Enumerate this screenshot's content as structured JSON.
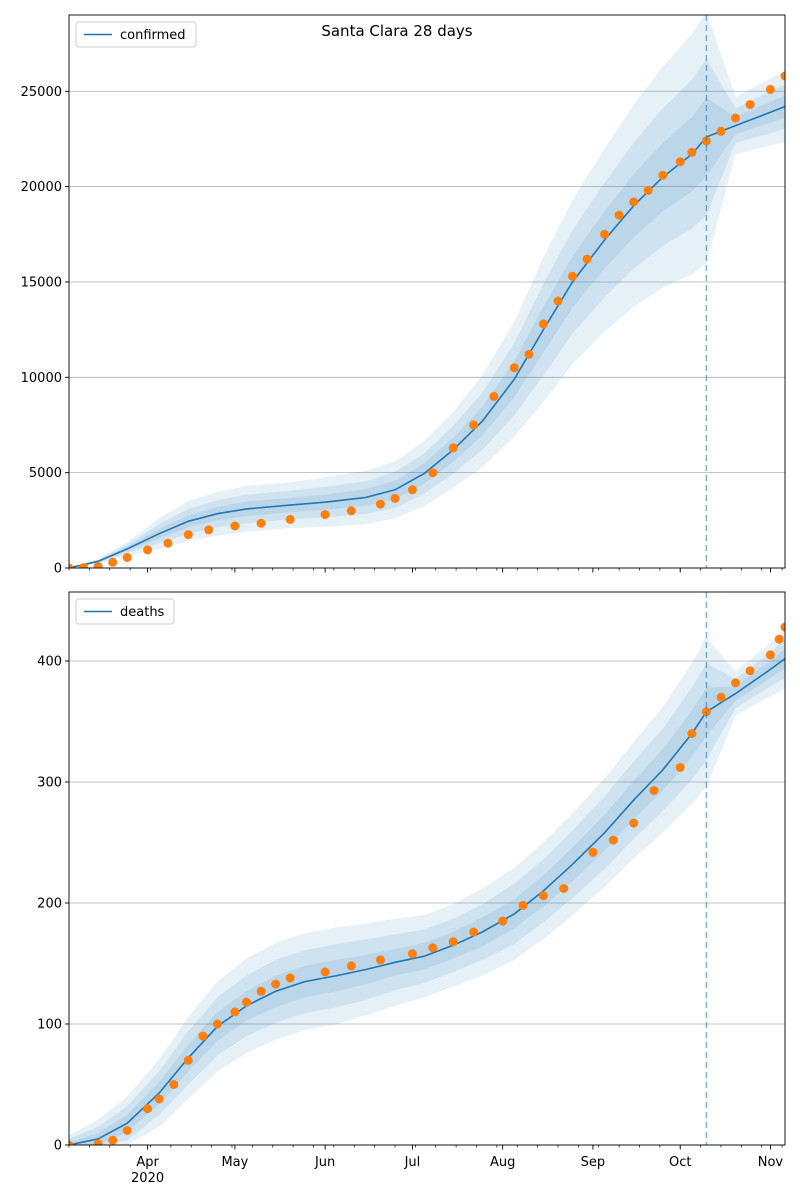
{
  "title": "Santa Clara 28 days",
  "colors": {
    "model": "#1f77b4",
    "observed": "#ff7f0e",
    "band": "#1f77b4",
    "cutoff": "#1f77b4",
    "grid": "#b0b0b0"
  },
  "x_axis": {
    "start_date": "2020-03-05",
    "end_date": "2020-11-06",
    "month_ticks": [
      {
        "label": "Apr",
        "date": "2020-04-01",
        "sublabel": "2020"
      },
      {
        "label": "May",
        "date": "2020-05-01"
      },
      {
        "label": "Jun",
        "date": "2020-06-01"
      },
      {
        "label": "Jul",
        "date": "2020-07-01"
      },
      {
        "label": "Aug",
        "date": "2020-08-01"
      },
      {
        "label": "Sep",
        "date": "2020-09-01"
      },
      {
        "label": "Oct",
        "date": "2020-10-01"
      },
      {
        "label": "Nov",
        "date": "2020-11-01"
      }
    ]
  },
  "chart_data": [
    {
      "type": "line",
      "legend": "confirmed",
      "legend_position": "upper-left",
      "grid": "horizontal",
      "ylim": [
        0,
        29000
      ],
      "yticks": [
        0,
        5000,
        10000,
        15000,
        20000,
        25000
      ],
      "forecast_start": "2020-10-10",
      "model": {
        "dates": [
          "2020-03-05",
          "2020-03-15",
          "2020-03-25",
          "2020-04-05",
          "2020-04-15",
          "2020-04-25",
          "2020-05-05",
          "2020-05-20",
          "2020-06-01",
          "2020-06-15",
          "2020-06-25",
          "2020-07-05",
          "2020-07-15",
          "2020-07-25",
          "2020-08-05",
          "2020-08-15",
          "2020-08-25",
          "2020-09-05",
          "2020-09-15",
          "2020-09-25",
          "2020-10-05",
          "2020-10-10",
          "2020-10-20",
          "2020-11-01",
          "2020-11-06"
        ],
        "values": [
          0,
          350,
          1000,
          1800,
          2450,
          2850,
          3100,
          3300,
          3450,
          3700,
          4100,
          4950,
          6200,
          7700,
          9900,
          12500,
          15000,
          17200,
          19000,
          20500,
          21700,
          22600,
          23200,
          23900,
          24200
        ],
        "band_offsets": [
          [
            0,
            120,
            380,
            800,
            1050,
            1150,
            1200,
            1200,
            1300,
            1400,
            1500,
            1700,
            2000,
            2400,
            3000,
            3800,
            4300,
            4800,
            5300,
            5800,
            6300,
            6600,
            1500,
            1750,
            1850
          ],
          [
            0,
            70,
            230,
            500,
            650,
            700,
            750,
            750,
            800,
            850,
            950,
            1050,
            1250,
            1500,
            1900,
            2400,
            2700,
            3000,
            3300,
            3600,
            3900,
            4100,
            900,
            1100,
            1150
          ],
          [
            0,
            35,
            110,
            250,
            320,
            350,
            380,
            380,
            400,
            430,
            480,
            530,
            630,
            750,
            950,
            1200,
            1350,
            1500,
            1650,
            1800,
            1950,
            2050,
            450,
            550,
            580
          ]
        ]
      },
      "observed": {
        "dates": [
          "2020-03-05",
          "2020-03-10",
          "2020-03-15",
          "2020-03-20",
          "2020-03-25",
          "2020-04-01",
          "2020-04-08",
          "2020-04-15",
          "2020-04-22",
          "2020-05-01",
          "2020-05-10",
          "2020-05-20",
          "2020-06-01",
          "2020-06-10",
          "2020-06-20",
          "2020-06-25",
          "2020-07-01",
          "2020-07-08",
          "2020-07-15",
          "2020-07-22",
          "2020-07-29",
          "2020-08-05",
          "2020-08-10",
          "2020-08-15",
          "2020-08-20",
          "2020-08-25",
          "2020-08-30",
          "2020-09-05",
          "2020-09-10",
          "2020-09-15",
          "2020-09-20",
          "2020-09-25",
          "2020-10-01",
          "2020-10-05",
          "2020-10-10",
          "2020-10-15",
          "2020-10-20",
          "2020-10-25",
          "2020-11-01",
          "2020-11-06"
        ],
        "values": [
          0,
          20,
          80,
          300,
          550,
          950,
          1300,
          1750,
          2000,
          2200,
          2350,
          2550,
          2800,
          3000,
          3350,
          3650,
          4100,
          5000,
          6300,
          7500,
          9000,
          10500,
          11200,
          12800,
          14000,
          15300,
          16200,
          17500,
          18500,
          19200,
          19800,
          20600,
          21300,
          21800,
          22400,
          22900,
          23600,
          24300,
          25100,
          25800
        ]
      }
    },
    {
      "type": "line",
      "legend": "deaths",
      "legend_position": "upper-left",
      "grid": "horizontal",
      "ylim": [
        0,
        457
      ],
      "yticks": [
        0,
        100,
        200,
        300,
        400
      ],
      "forecast_start": "2020-10-10",
      "model": {
        "dates": [
          "2020-03-05",
          "2020-03-15",
          "2020-03-25",
          "2020-04-05",
          "2020-04-15",
          "2020-04-25",
          "2020-05-05",
          "2020-05-15",
          "2020-05-25",
          "2020-06-05",
          "2020-06-15",
          "2020-06-25",
          "2020-07-05",
          "2020-07-15",
          "2020-07-25",
          "2020-08-05",
          "2020-08-15",
          "2020-08-25",
          "2020-09-05",
          "2020-09-15",
          "2020-09-25",
          "2020-10-05",
          "2020-10-10",
          "2020-10-20",
          "2020-11-01",
          "2020-11-06"
        ],
        "values": [
          0,
          5,
          18,
          43,
          72,
          98,
          115,
          127,
          135,
          140,
          145,
          151,
          156,
          165,
          176,
          191,
          210,
          232,
          258,
          285,
          310,
          340,
          358,
          373,
          393,
          402
        ],
        "band_offsets": [
          [
            8,
            16,
            22,
            28,
            34,
            37,
            39,
            40,
            40,
            40,
            38,
            36,
            34,
            34,
            36,
            38,
            40,
            42,
            45,
            48,
            52,
            58,
            62,
            18,
            22,
            25
          ],
          [
            5,
            10,
            14,
            18,
            22,
            24,
            25,
            26,
            26,
            26,
            25,
            23,
            22,
            22,
            23,
            25,
            26,
            28,
            30,
            32,
            34,
            38,
            40,
            12,
            14,
            16
          ],
          [
            2,
            5,
            7,
            9,
            11,
            12,
            12,
            13,
            13,
            13,
            12,
            11,
            11,
            11,
            12,
            12,
            13,
            14,
            15,
            16,
            17,
            19,
            20,
            6,
            7,
            8
          ]
        ]
      },
      "observed": {
        "dates": [
          "2020-03-05",
          "2020-03-15",
          "2020-03-20",
          "2020-03-25",
          "2020-04-01",
          "2020-04-05",
          "2020-04-10",
          "2020-04-15",
          "2020-04-20",
          "2020-04-25",
          "2020-05-01",
          "2020-05-05",
          "2020-05-10",
          "2020-05-15",
          "2020-05-20",
          "2020-06-01",
          "2020-06-10",
          "2020-06-20",
          "2020-07-01",
          "2020-07-08",
          "2020-07-15",
          "2020-07-22",
          "2020-08-01",
          "2020-08-08",
          "2020-08-15",
          "2020-08-22",
          "2020-09-01",
          "2020-09-08",
          "2020-09-15",
          "2020-09-22",
          "2020-10-01",
          "2020-10-05",
          "2020-10-10",
          "2020-10-15",
          "2020-10-20",
          "2020-10-25",
          "2020-11-01",
          "2020-11-04",
          "2020-11-06"
        ],
        "values": [
          0,
          1,
          4,
          12,
          30,
          38,
          50,
          70,
          90,
          100,
          110,
          118,
          127,
          133,
          138,
          143,
          148,
          153,
          158,
          163,
          168,
          176,
          185,
          198,
          206,
          212,
          242,
          252,
          266,
          293,
          312,
          340,
          358,
          370,
          382,
          392,
          405,
          418,
          428
        ]
      }
    }
  ]
}
